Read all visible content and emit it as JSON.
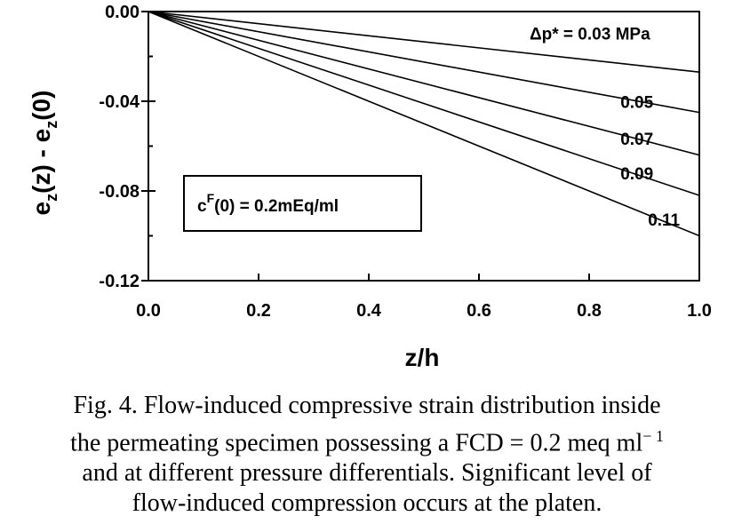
{
  "chart_data": {
    "type": "line",
    "xlabel": "z/h",
    "ylabel_main": "e",
    "ylabel_sub1": "z",
    "ylabel_mid": "(z) - e",
    "ylabel_sub2": "z",
    "ylabel_end": "(0)",
    "xlim": [
      0.0,
      1.0
    ],
    "ylim": [
      -0.12,
      0.0
    ],
    "xticks": [
      "0.0",
      "0.2",
      "0.4",
      "0.6",
      "0.8",
      "1.0"
    ],
    "xtick_values": [
      0.0,
      0.2,
      0.4,
      0.6,
      0.8,
      1.0
    ],
    "yticks": [
      "0.00",
      "-0.04",
      "-0.08",
      "-0.12"
    ],
    "ytick_values": [
      0.0,
      -0.04,
      -0.08,
      -0.12
    ],
    "grid": false,
    "series": [
      {
        "name": "0.03 MPa",
        "x": [
          0.0,
          1.0
        ],
        "y": [
          0.0,
          -0.027
        ]
      },
      {
        "name": "0.05",
        "x": [
          0.0,
          1.0
        ],
        "y": [
          0.0,
          -0.045
        ]
      },
      {
        "name": "0.07",
        "x": [
          0.0,
          1.0
        ],
        "y": [
          0.0,
          -0.064
        ]
      },
      {
        "name": "0.09",
        "x": [
          0.0,
          1.0
        ],
        "y": [
          0.0,
          -0.082
        ]
      },
      {
        "name": "0.11",
        "x": [
          0.0,
          1.0
        ],
        "y": [
          0.0,
          -0.1
        ]
      }
    ],
    "series_label_prefix": "Δp*  = ",
    "box_annotation": {
      "c": "c",
      "sup": "F",
      "rest": "(0)  = 0.2mEq/ml"
    }
  },
  "caption": {
    "lines": [
      "Fig. 4. Flow-induced compressive strain distribution inside",
      "the permeating specimen possessing a FCD = 0.2 meq ml",
      "and at different pressure differentials. Significant level of",
      "flow-induced compression occurs at the platen."
    ],
    "superscript": "− 1"
  }
}
